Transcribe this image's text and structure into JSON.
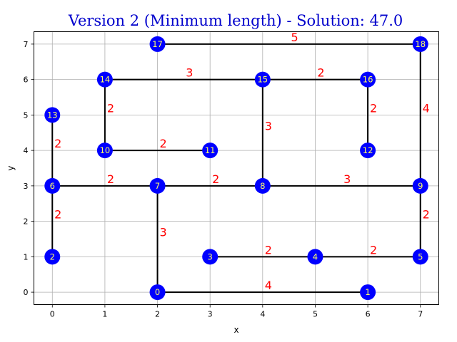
{
  "chart_data": {
    "type": "scatter",
    "title": "Version 2 (Minimum length) - Solution: 47.0",
    "xlabel": "x",
    "ylabel": "y",
    "xlim": [
      -0.35,
      7.35
    ],
    "ylim": [
      -0.35,
      7.35
    ],
    "x_ticks": [
      0,
      1,
      2,
      3,
      4,
      5,
      6,
      7
    ],
    "y_ticks": [
      0,
      1,
      2,
      3,
      4,
      5,
      6,
      7
    ],
    "grid": true,
    "colors": {
      "title": "#0000cc",
      "node_fill": "#0000ff",
      "node_label": "#ffff66",
      "edge": "#000000",
      "weight": "#ff0000",
      "grid": "#b0b0b0"
    },
    "nodes": [
      {
        "id": "0",
        "x": 2,
        "y": 0
      },
      {
        "id": "1",
        "x": 6,
        "y": 0
      },
      {
        "id": "2",
        "x": 0,
        "y": 1
      },
      {
        "id": "3",
        "x": 3,
        "y": 1
      },
      {
        "id": "4",
        "x": 5,
        "y": 1
      },
      {
        "id": "5",
        "x": 7,
        "y": 1
      },
      {
        "id": "6",
        "x": 0,
        "y": 3
      },
      {
        "id": "7",
        "x": 2,
        "y": 3
      },
      {
        "id": "8",
        "x": 4,
        "y": 3
      },
      {
        "id": "9",
        "x": 7,
        "y": 3
      },
      {
        "id": "10",
        "x": 1,
        "y": 4
      },
      {
        "id": "11",
        "x": 3,
        "y": 4
      },
      {
        "id": "12",
        "x": 6,
        "y": 4
      },
      {
        "id": "13",
        "x": 0,
        "y": 5
      },
      {
        "id": "14",
        "x": 1,
        "y": 6
      },
      {
        "id": "15",
        "x": 4,
        "y": 6
      },
      {
        "id": "16",
        "x": 6,
        "y": 6
      },
      {
        "id": "17",
        "x": 2,
        "y": 7
      },
      {
        "id": "18",
        "x": 7,
        "y": 7
      }
    ],
    "edges": [
      {
        "from": "0",
        "to": "1",
        "weight": "4"
      },
      {
        "from": "0",
        "to": "7",
        "weight": "3"
      },
      {
        "from": "2",
        "to": "6",
        "weight": "2"
      },
      {
        "from": "3",
        "to": "4",
        "weight": "2"
      },
      {
        "from": "4",
        "to": "5",
        "weight": "2"
      },
      {
        "from": "5",
        "to": "9",
        "weight": "2"
      },
      {
        "from": "6",
        "to": "13",
        "weight": "2"
      },
      {
        "from": "6",
        "to": "7",
        "weight": "2"
      },
      {
        "from": "7",
        "to": "8",
        "weight": "2"
      },
      {
        "from": "8",
        "to": "9",
        "weight": "3"
      },
      {
        "from": "8",
        "to": "15",
        "weight": "3"
      },
      {
        "from": "9",
        "to": "18",
        "weight": "4"
      },
      {
        "from": "10",
        "to": "11",
        "weight": "2"
      },
      {
        "from": "10",
        "to": "14",
        "weight": "2"
      },
      {
        "from": "12",
        "to": "16",
        "weight": "2"
      },
      {
        "from": "14",
        "to": "15",
        "weight": "3"
      },
      {
        "from": "15",
        "to": "16",
        "weight": "2"
      },
      {
        "from": "17",
        "to": "18",
        "weight": "5"
      }
    ]
  }
}
